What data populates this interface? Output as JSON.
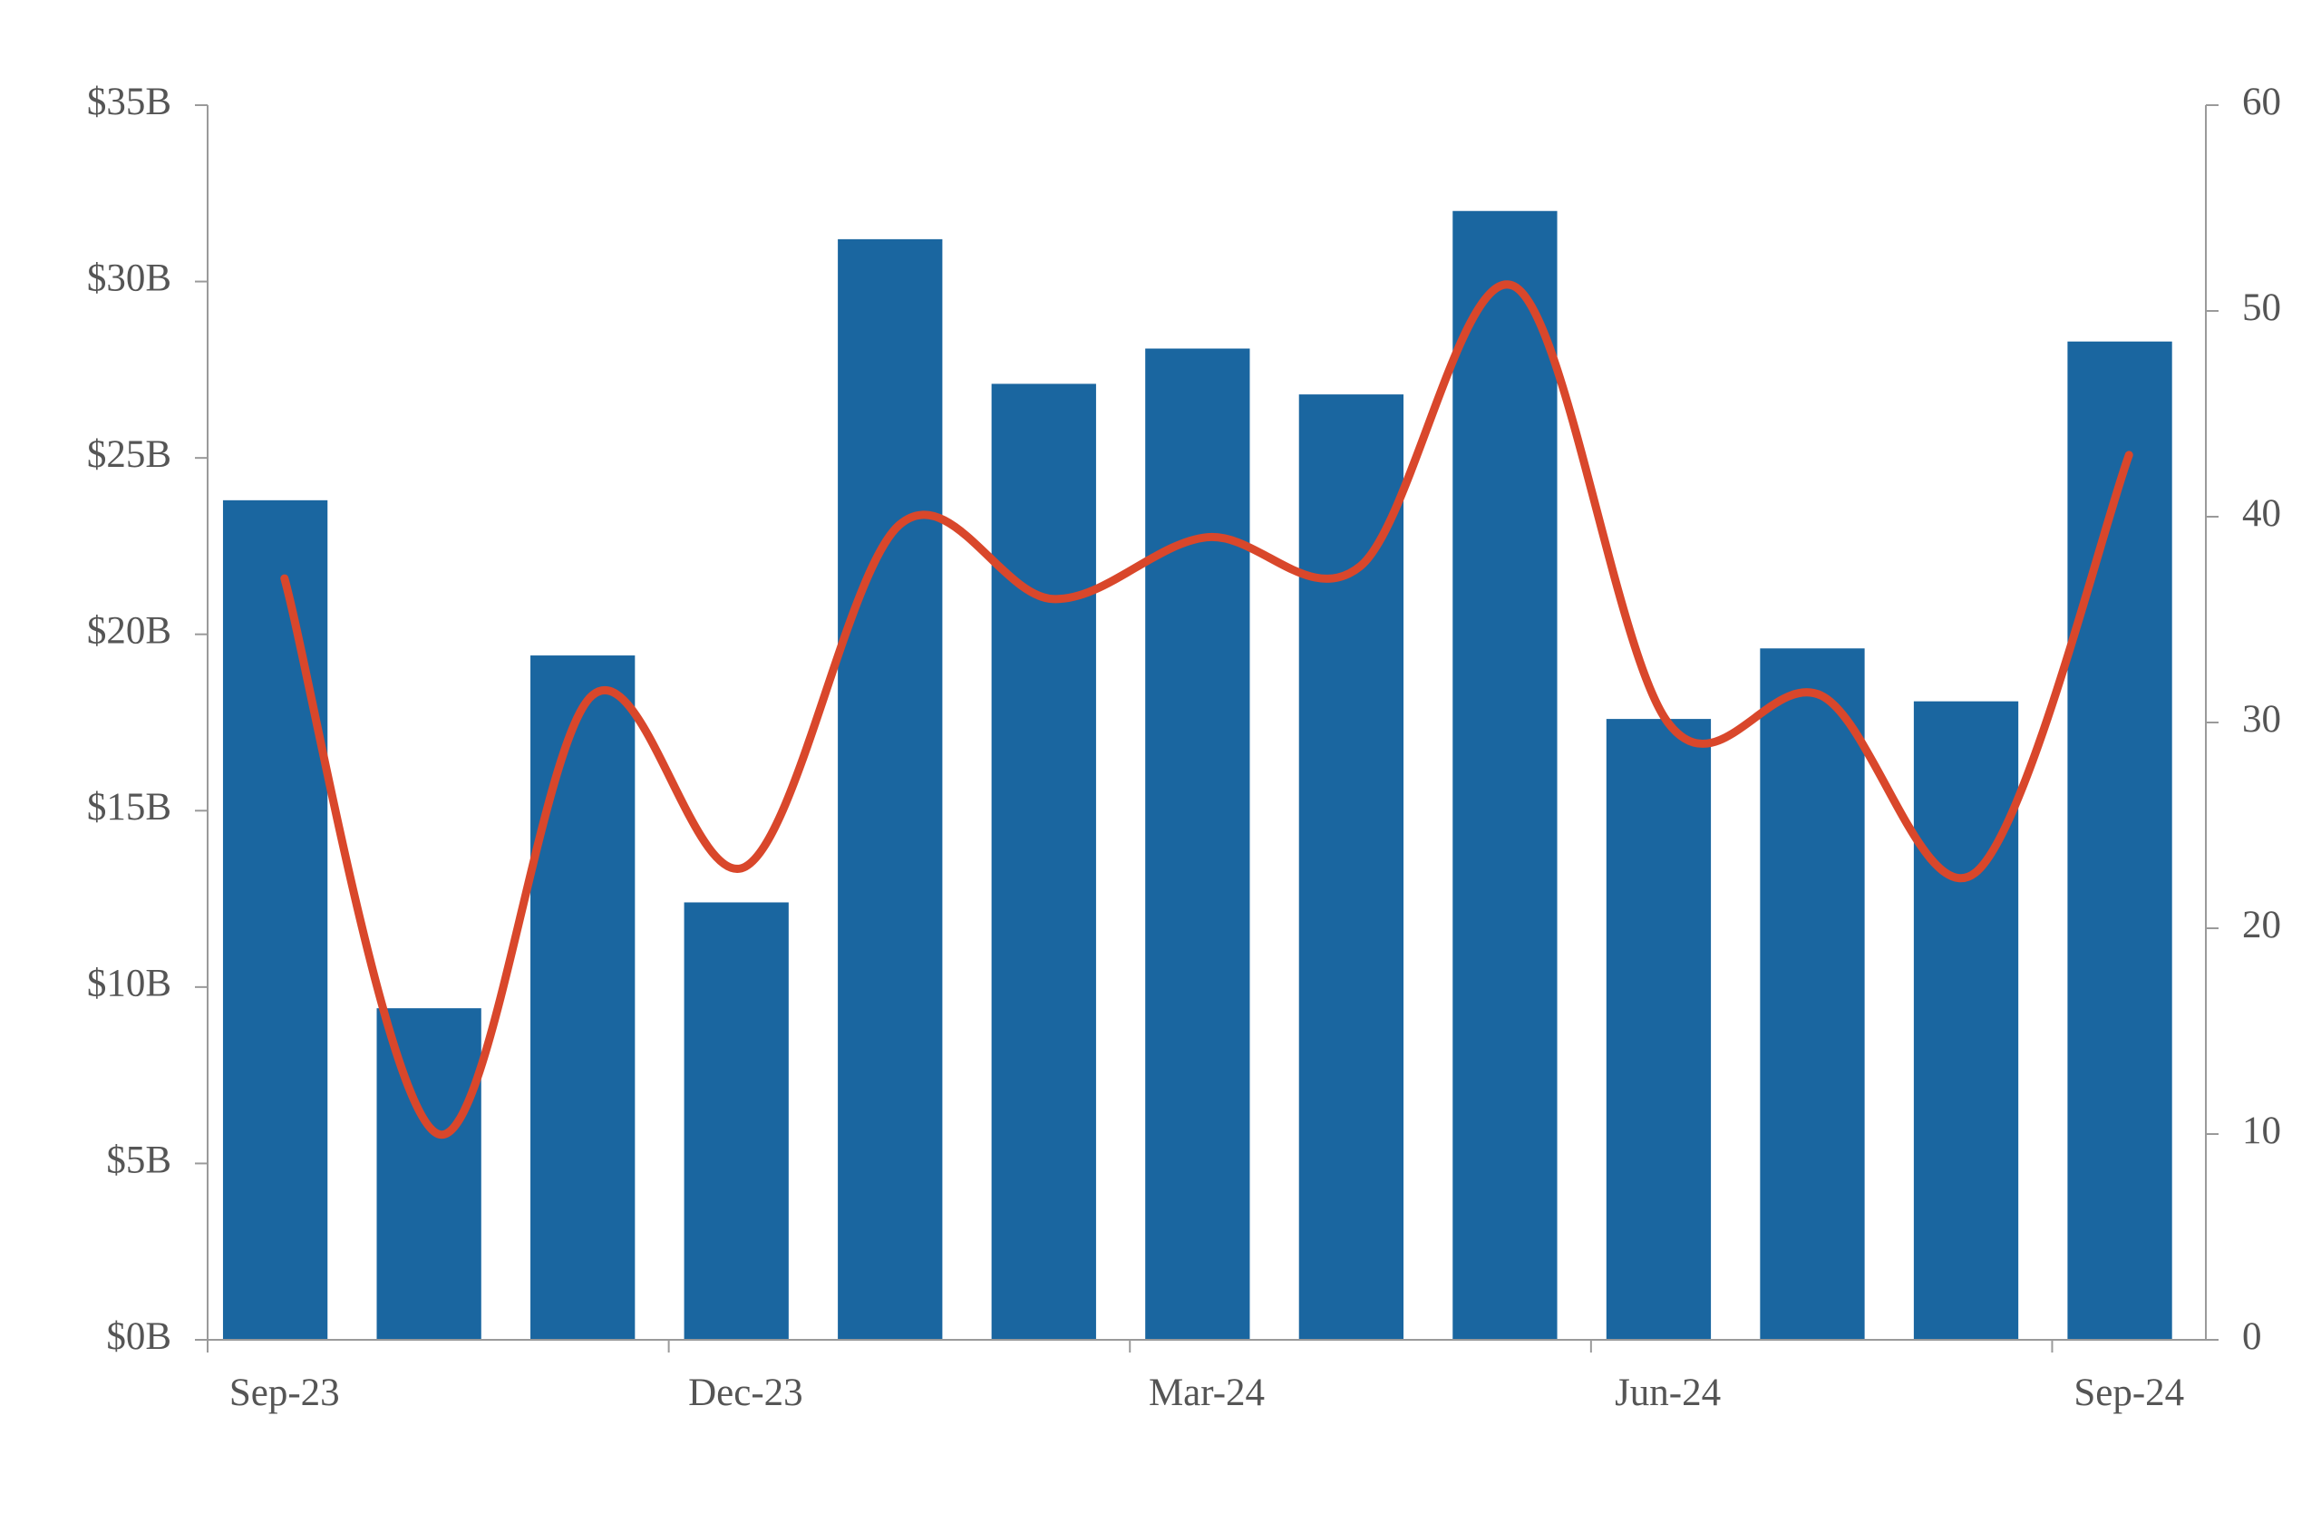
{
  "chart_data": {
    "type": "bar-line",
    "categories": [
      "Sep-23",
      null,
      null,
      "Dec-23",
      null,
      null,
      "Mar-24",
      null,
      null,
      "Jun-24",
      null,
      null,
      "Sep-24"
    ],
    "series": [
      {
        "type": "bar",
        "color": "#1a66a0",
        "values": [
          23.8,
          9.4,
          19.4,
          12.4,
          31.2,
          27.1,
          28.1,
          26.8,
          32.0,
          17.6,
          19.6,
          18.1,
          28.3
        ]
      },
      {
        "type": "line",
        "axis": "y2",
        "color": "#d9472b",
        "values": [
          37.0,
          10.0,
          31.3,
          23.0,
          39.6,
          36.0,
          39.0,
          37.6,
          51.2,
          30.0,
          31.3,
          22.7,
          43.0
        ]
      }
    ],
    "ylim": [
      0,
      35
    ],
    "yticks": [
      {
        "value": 0,
        "label": "$0B"
      },
      {
        "value": 5,
        "label": "$5B"
      },
      {
        "value": 10,
        "label": "$10B"
      },
      {
        "value": 15,
        "label": "$15B"
      },
      {
        "value": 20,
        "label": "$20B"
      },
      {
        "value": 25,
        "label": "$25B"
      },
      {
        "value": 30,
        "label": "$30B"
      },
      {
        "value": 35,
        "label": "$35B"
      }
    ],
    "y2lim": [
      0,
      60
    ],
    "y2ticks": [
      0,
      10,
      20,
      30,
      40,
      50,
      60
    ],
    "grid": false
  }
}
